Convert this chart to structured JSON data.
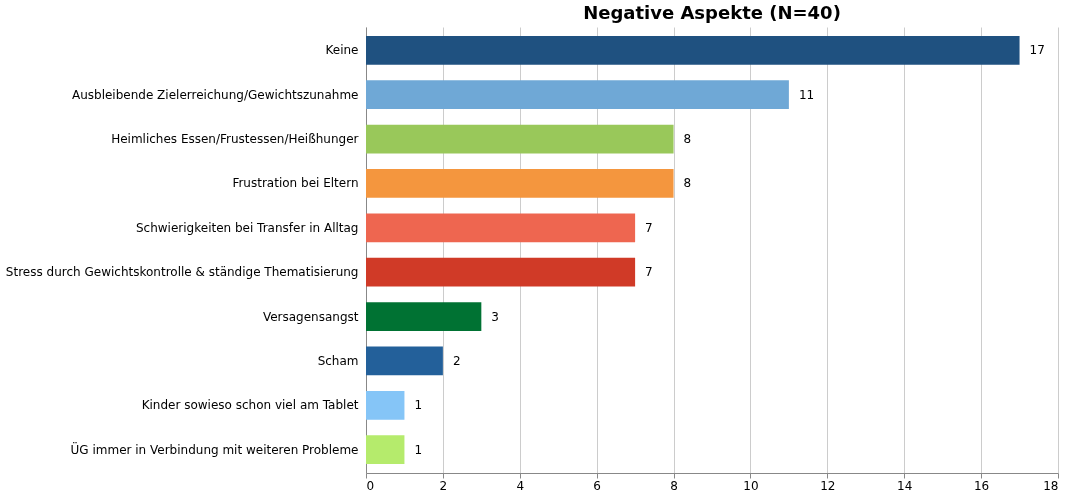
{
  "chart_data": {
    "type": "bar",
    "orientation": "horizontal",
    "title": "Negative Aspekte (N=40)",
    "categories": [
      "Keine",
      "Ausbleibende Zielerreichung/Gewichtszunahme",
      "Heimliches Essen/Frustessen/Heißhunger",
      "Frustration bei Eltern",
      "Schwierigkeiten bei Transfer in Alltag",
      "Stress durch Gewichtskontrolle & ständige Thematisierung",
      "Versagensangst",
      "Scham",
      "Kinder sowieso schon viel am Tablet",
      "ÜG immer in Verbindung mit weiteren Probleme"
    ],
    "values": [
      17,
      11,
      8,
      8,
      7,
      7,
      3,
      2,
      1,
      1
    ],
    "colors": [
      "#1f5180",
      "#6fa8d6",
      "#99c85a",
      "#f4963e",
      "#ee6650",
      "#d03a27",
      "#007233",
      "#23609a",
      "#85c5f7",
      "#b5eb6c"
    ],
    "xlim": [
      0,
      18
    ],
    "xticks": [
      0,
      2,
      4,
      6,
      8,
      10,
      12,
      14,
      16,
      18
    ],
    "grid": "x",
    "data_labels": true
  }
}
